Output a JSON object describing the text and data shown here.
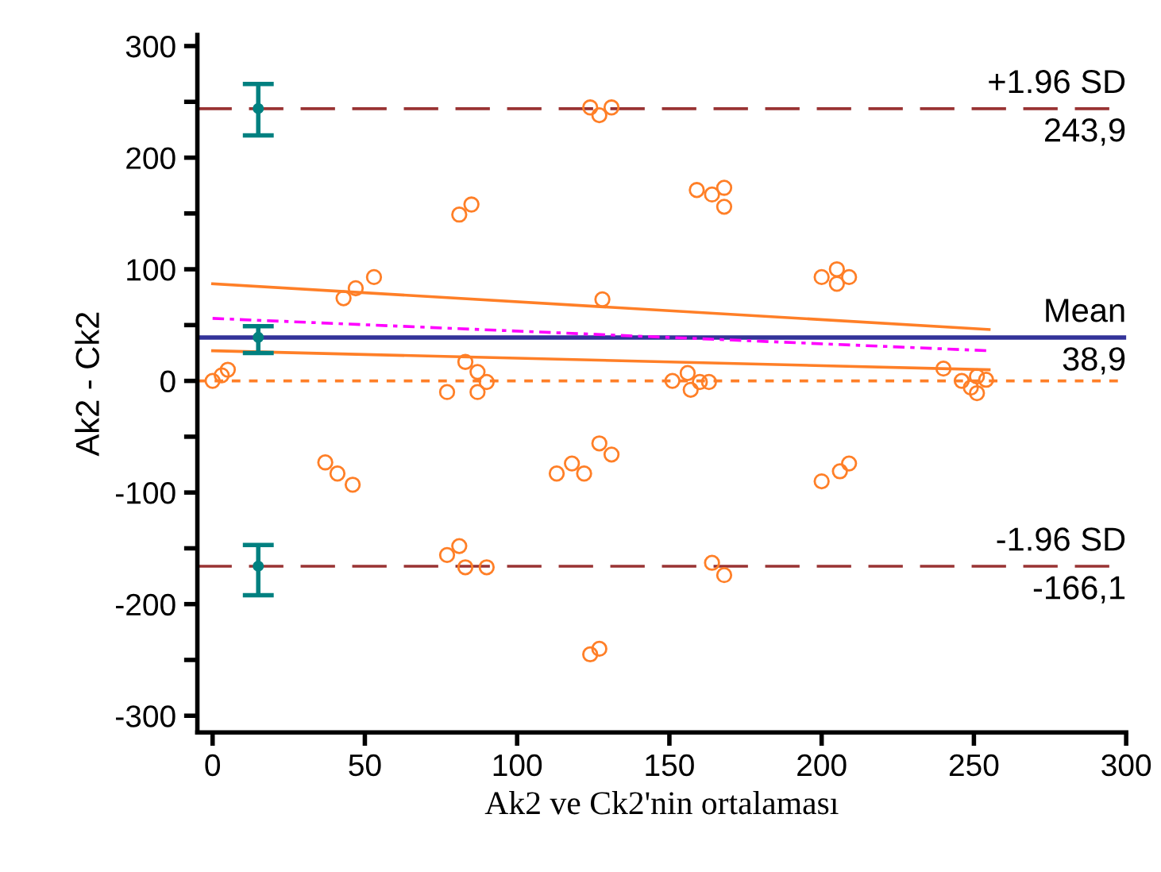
{
  "chart_data": {
    "type": "scatter",
    "xlabel": "Ak2 ve Ck2'nin ortalaması",
    "ylabel": "Ak2 - Ck2",
    "xlim": [
      -5,
      300
    ],
    "xticks": [
      0,
      50,
      100,
      150,
      200,
      250,
      300
    ],
    "ylim": [
      -315,
      310
    ],
    "yticks": [
      -300,
      {
        "value": -250,
        "label": null
      },
      -200,
      {
        "value": -150,
        "label": null
      },
      -100,
      {
        "value": -50,
        "label": null
      },
      0,
      {
        "value": 50,
        "label": null
      },
      100,
      {
        "value": 150,
        "label": null
      },
      200,
      {
        "value": 250,
        "label": null
      },
      300
    ],
    "grid": false,
    "legend": false,
    "series": [
      {
        "color": "#ff7f27",
        "marker": "circle",
        "x": [
          0,
          3,
          5,
          43,
          47,
          53,
          81,
          85,
          83,
          87,
          90,
          87,
          77,
          128,
          124,
          127,
          131,
          159,
          164,
          168,
          168,
          151,
          156,
          160,
          157,
          163,
          200,
          205,
          205,
          209,
          240,
          246,
          251,
          249,
          254,
          251,
          37,
          41,
          46,
          113,
          118,
          122,
          127,
          131,
          77,
          81,
          83,
          90,
          124,
          127,
          200,
          206,
          209,
          164,
          168
        ],
        "values": [
          0,
          5,
          10,
          74,
          83,
          93,
          149,
          158,
          17,
          8,
          -1,
          -10,
          -10,
          73,
          245,
          238,
          245,
          171,
          167,
          173,
          156,
          0,
          7,
          -1,
          -8,
          -1,
          93,
          100,
          87,
          93,
          11,
          0,
          4,
          -6,
          1,
          -11,
          -73,
          -83,
          -93,
          -83,
          -74,
          -83,
          -56,
          -66,
          -156,
          -148,
          -167,
          -167,
          -245,
          -240,
          -90,
          -81,
          -74,
          -163,
          -174
        ]
      },
      {
        "type": "line",
        "color": "#ff7f27",
        "line_style": "solid",
        "marker": "none",
        "x": [
          0,
          255
        ],
        "values": [
          87,
          46
        ]
      },
      {
        "type": "line",
        "color": "#ff7f27",
        "line_style": "solid",
        "marker": "none",
        "x": [
          0,
          255
        ],
        "values": [
          27,
          10
        ]
      },
      {
        "type": "line",
        "color": "#ff00ff",
        "line_style": "dashdot",
        "marker": "none",
        "x": [
          0,
          255
        ],
        "values": [
          56,
          27
        ]
      },
      {
        "type": "scatter",
        "color": "#008080",
        "marker": "circle",
        "x": [
          15,
          15,
          15
        ],
        "values": [
          244,
          39,
          -166
        ],
        "errors": [
          [
            220,
            266
          ],
          [
            25,
            49
          ],
          [
            -192,
            -147
          ]
        ]
      }
    ],
    "ref_lines": [
      {
        "axis": "y",
        "value": 243.9,
        "label": "+1.96 SD",
        "color": "#993333",
        "line_style": "dashed"
      },
      {
        "axis": "y",
        "value": 38.9,
        "label": "Mean",
        "color": "#333399",
        "line_style": "solid"
      },
      {
        "axis": "y",
        "value": -166.1,
        "label": "-1.96 SD",
        "color": "#993333",
        "line_style": "dashed"
      },
      {
        "axis": "y",
        "value": 0,
        "label": null,
        "color": "#ff7f27",
        "line_style": "dotted"
      }
    ],
    "annotations": [
      {
        "text": "243,9",
        "y": 243.9
      },
      {
        "text": "38,9",
        "y": 38.9
      },
      {
        "text": "-166,1",
        "y": -166.1
      }
    ]
  }
}
